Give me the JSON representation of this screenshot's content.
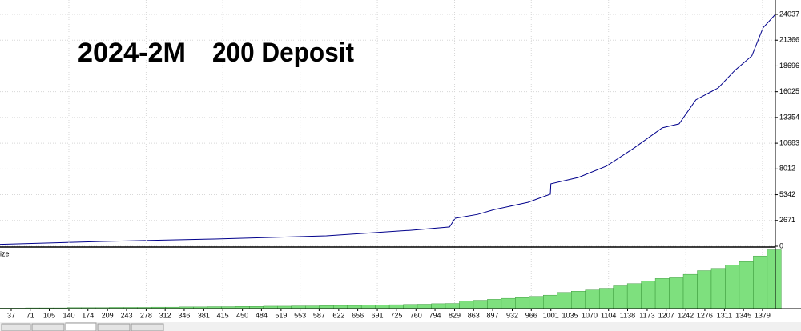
{
  "chart_data": [
    {
      "type": "line",
      "annotations": [
        {
          "text": "2024-2M",
          "color": "#000000"
        },
        {
          "text": "200 Deposit",
          "color": "#e0202a"
        }
      ],
      "x": [
        17,
        200,
        400,
        600,
        750,
        820,
        830,
        870,
        900,
        960,
        1000,
        1001,
        1050,
        1100,
        1150,
        1200,
        1230,
        1260,
        1300,
        1330,
        1360,
        1380,
        1402
      ],
      "values": [
        200,
        500,
        750,
        1080,
        1650,
        2000,
        2900,
        3300,
        3800,
        4550,
        5400,
        6470,
        7130,
        8300,
        10200,
        12280,
        12690,
        15180,
        16420,
        18250,
        19740,
        22650,
        24037
      ],
      "color": "#00008b",
      "xlim": [
        17,
        1402
      ],
      "ylim": [
        0,
        25530
      ],
      "yticks": [
        0,
        2671,
        5342,
        8012,
        10683,
        13354,
        16025,
        18696,
        21366,
        24037
      ],
      "grid": true
    },
    {
      "type": "bar",
      "y_label": "Size",
      "x": [
        25,
        50,
        75,
        100,
        125,
        150,
        175,
        200,
        225,
        250,
        275,
        300,
        325,
        350,
        375,
        400,
        425,
        450,
        475,
        500,
        525,
        550,
        575,
        600,
        625,
        650,
        675,
        700,
        725,
        750,
        775,
        800,
        825,
        850,
        875,
        900,
        925,
        950,
        975,
        1000,
        1025,
        1050,
        1075,
        1100,
        1125,
        1150,
        1175,
        1200,
        1225,
        1250,
        1275,
        1300,
        1325,
        1350,
        1375,
        1400
      ],
      "values": [
        0.02,
        0.02,
        0.03,
        0.03,
        0.03,
        0.04,
        0.04,
        0.04,
        0.05,
        0.05,
        0.05,
        0.06,
        0.06,
        0.07,
        0.07,
        0.08,
        0.08,
        0.09,
        0.09,
        0.1,
        0.1,
        0.11,
        0.11,
        0.12,
        0.13,
        0.13,
        0.14,
        0.15,
        0.16,
        0.17,
        0.18,
        0.2,
        0.21,
        0.31,
        0.34,
        0.38,
        0.42,
        0.45,
        0.5,
        0.55,
        0.66,
        0.71,
        0.76,
        0.83,
        0.93,
        1.02,
        1.13,
        1.23,
        1.26,
        1.4,
        1.55,
        1.64,
        1.78,
        1.92,
        2.15,
        2.4
      ],
      "color": "#7ee07e",
      "xlim": [
        17,
        1402
      ],
      "ylim": [
        0,
        2.45
      ],
      "xticks": [
        37,
        71,
        105,
        140,
        174,
        209,
        243,
        278,
        312,
        346,
        381,
        415,
        450,
        484,
        519,
        553,
        587,
        622,
        656,
        691,
        725,
        760,
        794,
        829,
        863,
        897,
        932,
        966,
        1001,
        1035,
        1070,
        1104,
        1138,
        1173,
        1207,
        1242,
        1276,
        1311,
        1345,
        1379
      ],
      "grid": true
    }
  ]
}
